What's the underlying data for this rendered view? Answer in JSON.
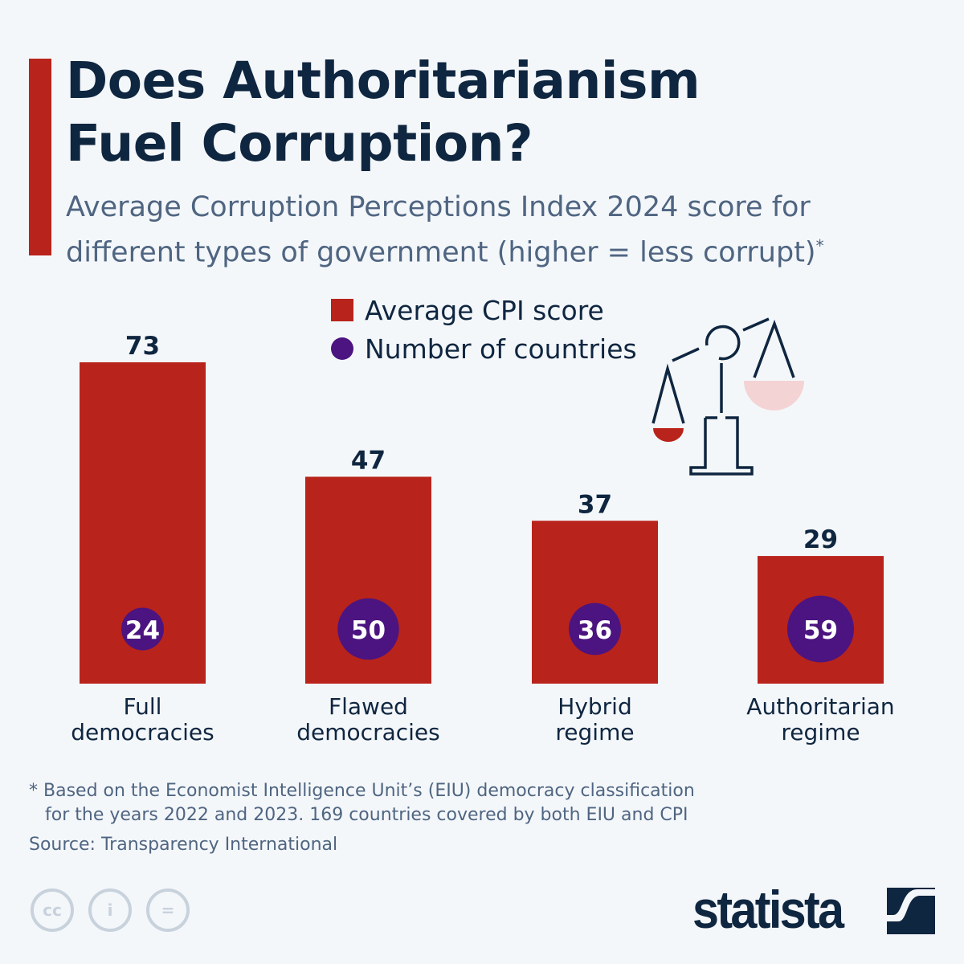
{
  "title": "Does Authoritarianism Fuel Corruption?",
  "title_line1": "Does Authoritarianism",
  "title_line2": "Fuel Corruption?",
  "subtitle": "Average Corruption Perceptions Index 2024 score for different types of government (higher = less corrupt)",
  "subtitle_mark": "*",
  "legend": {
    "bar": "Average CPI score",
    "circle": "Number of countries"
  },
  "colors": {
    "bar": "#b8231b",
    "circle": "#4b1480",
    "text": "#0f2640",
    "accent": "#b8231b"
  },
  "chart_data": {
    "type": "bar",
    "categories": [
      "Full democracies",
      "Flawed democracies",
      "Hybrid regime",
      "Authoritarian regime"
    ],
    "category_lines": [
      [
        "Full",
        "democracies"
      ],
      [
        "Flawed",
        "democracies"
      ],
      [
        "Hybrid",
        "regime"
      ],
      [
        "Authoritarian",
        "regime"
      ]
    ],
    "series": [
      {
        "name": "Average CPI score",
        "values": [
          73,
          47,
          37,
          29
        ]
      },
      {
        "name": "Number of countries",
        "values": [
          24,
          50,
          36,
          59
        ]
      }
    ],
    "ylim": [
      0,
      73
    ],
    "grid": false,
    "legend_position": "top-center"
  },
  "footnote_line1": "* Based on the Economist Intelligence Unit’s (EIU) democracy classification",
  "footnote_line2": "for the years 2022 and 2023. 169 countries covered by both EIU and CPI",
  "source": "Source: Transparency International",
  "license_icons": [
    "cc-icon",
    "attribution-icon",
    "no-derivatives-icon"
  ],
  "brand": "statista"
}
